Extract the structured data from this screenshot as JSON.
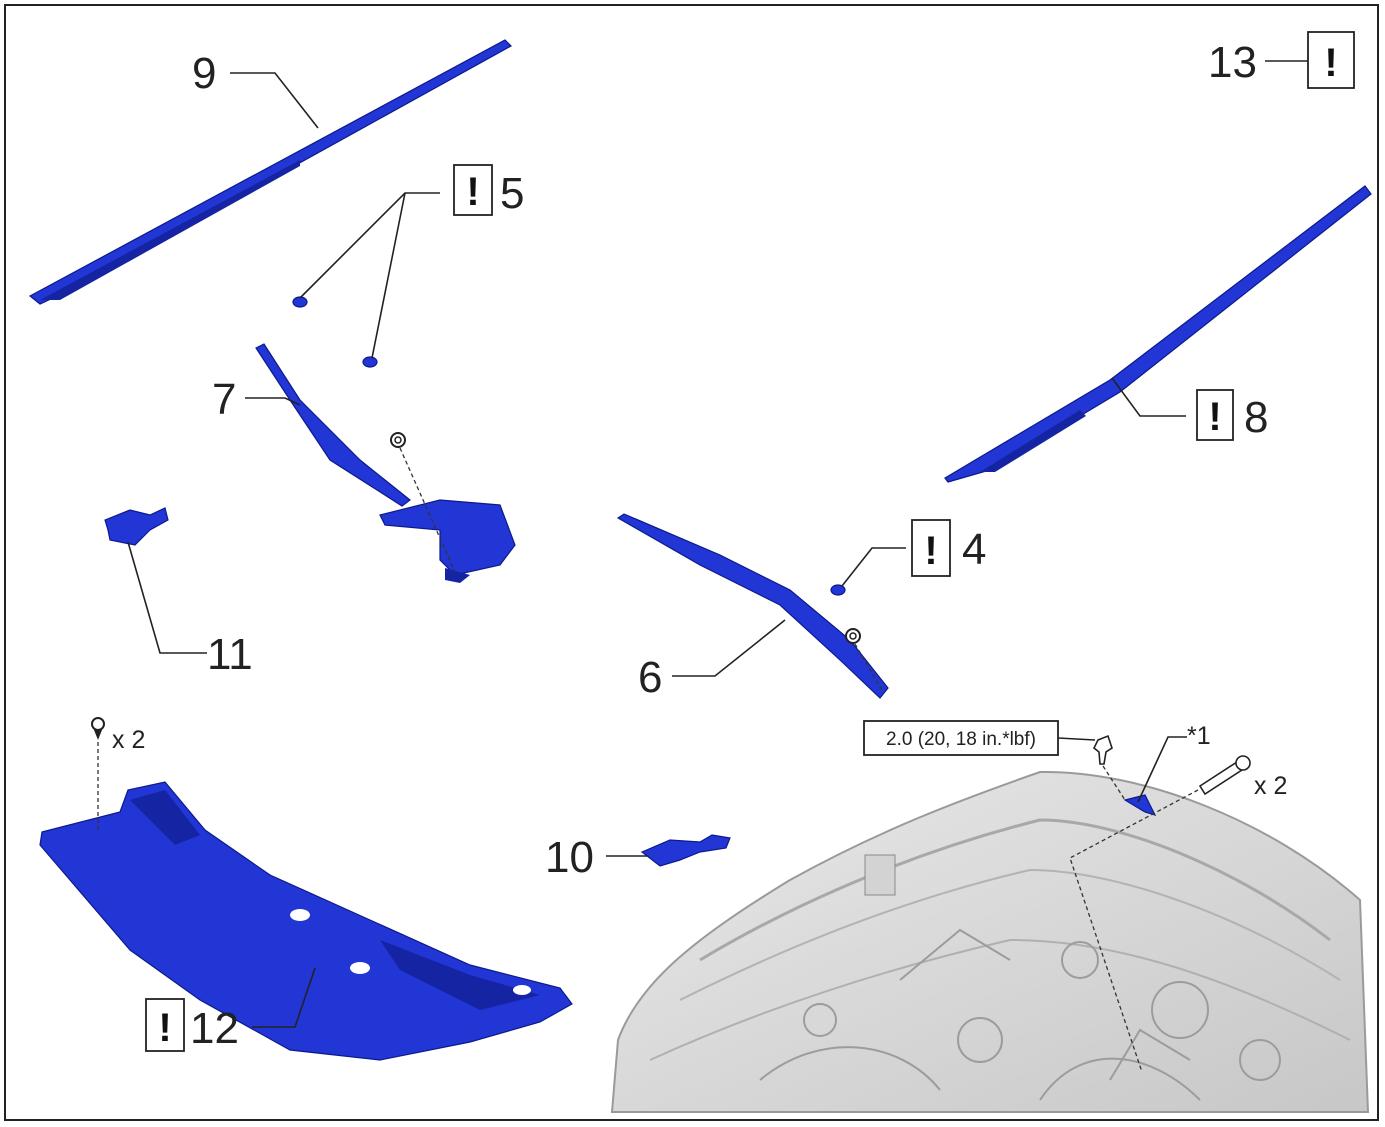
{
  "diagram": {
    "callouts": [
      {
        "id": "c9",
        "number": "9",
        "warning": false
      },
      {
        "id": "c13",
        "number": "13",
        "warning": true
      },
      {
        "id": "c5",
        "number": "5",
        "warning": true
      },
      {
        "id": "c7",
        "number": "7",
        "warning": false
      },
      {
        "id": "c8",
        "number": "8",
        "warning": true
      },
      {
        "id": "c4",
        "number": "4",
        "warning": true
      },
      {
        "id": "c11",
        "number": "11",
        "warning": false
      },
      {
        "id": "c6",
        "number": "6",
        "warning": false
      },
      {
        "id": "c10",
        "number": "10",
        "warning": false
      },
      {
        "id": "c12",
        "number": "12",
        "warning": true
      }
    ],
    "warning_symbol": "!",
    "quantity_12": "x 2",
    "quantity_bolt": "x 2",
    "torque_spec": "2.0 (20, 18 in.*lbf)",
    "ref_mark": "*1",
    "colors": {
      "part_fill": "#2136d4",
      "part_outline": "#0c1a8c",
      "engine_bay": "#d9d9d9",
      "line": "#222222"
    },
    "icons": [
      "warning-icon",
      "clip-icon",
      "nut-icon",
      "bolt-icon",
      "engine-bay-illustration"
    ]
  }
}
